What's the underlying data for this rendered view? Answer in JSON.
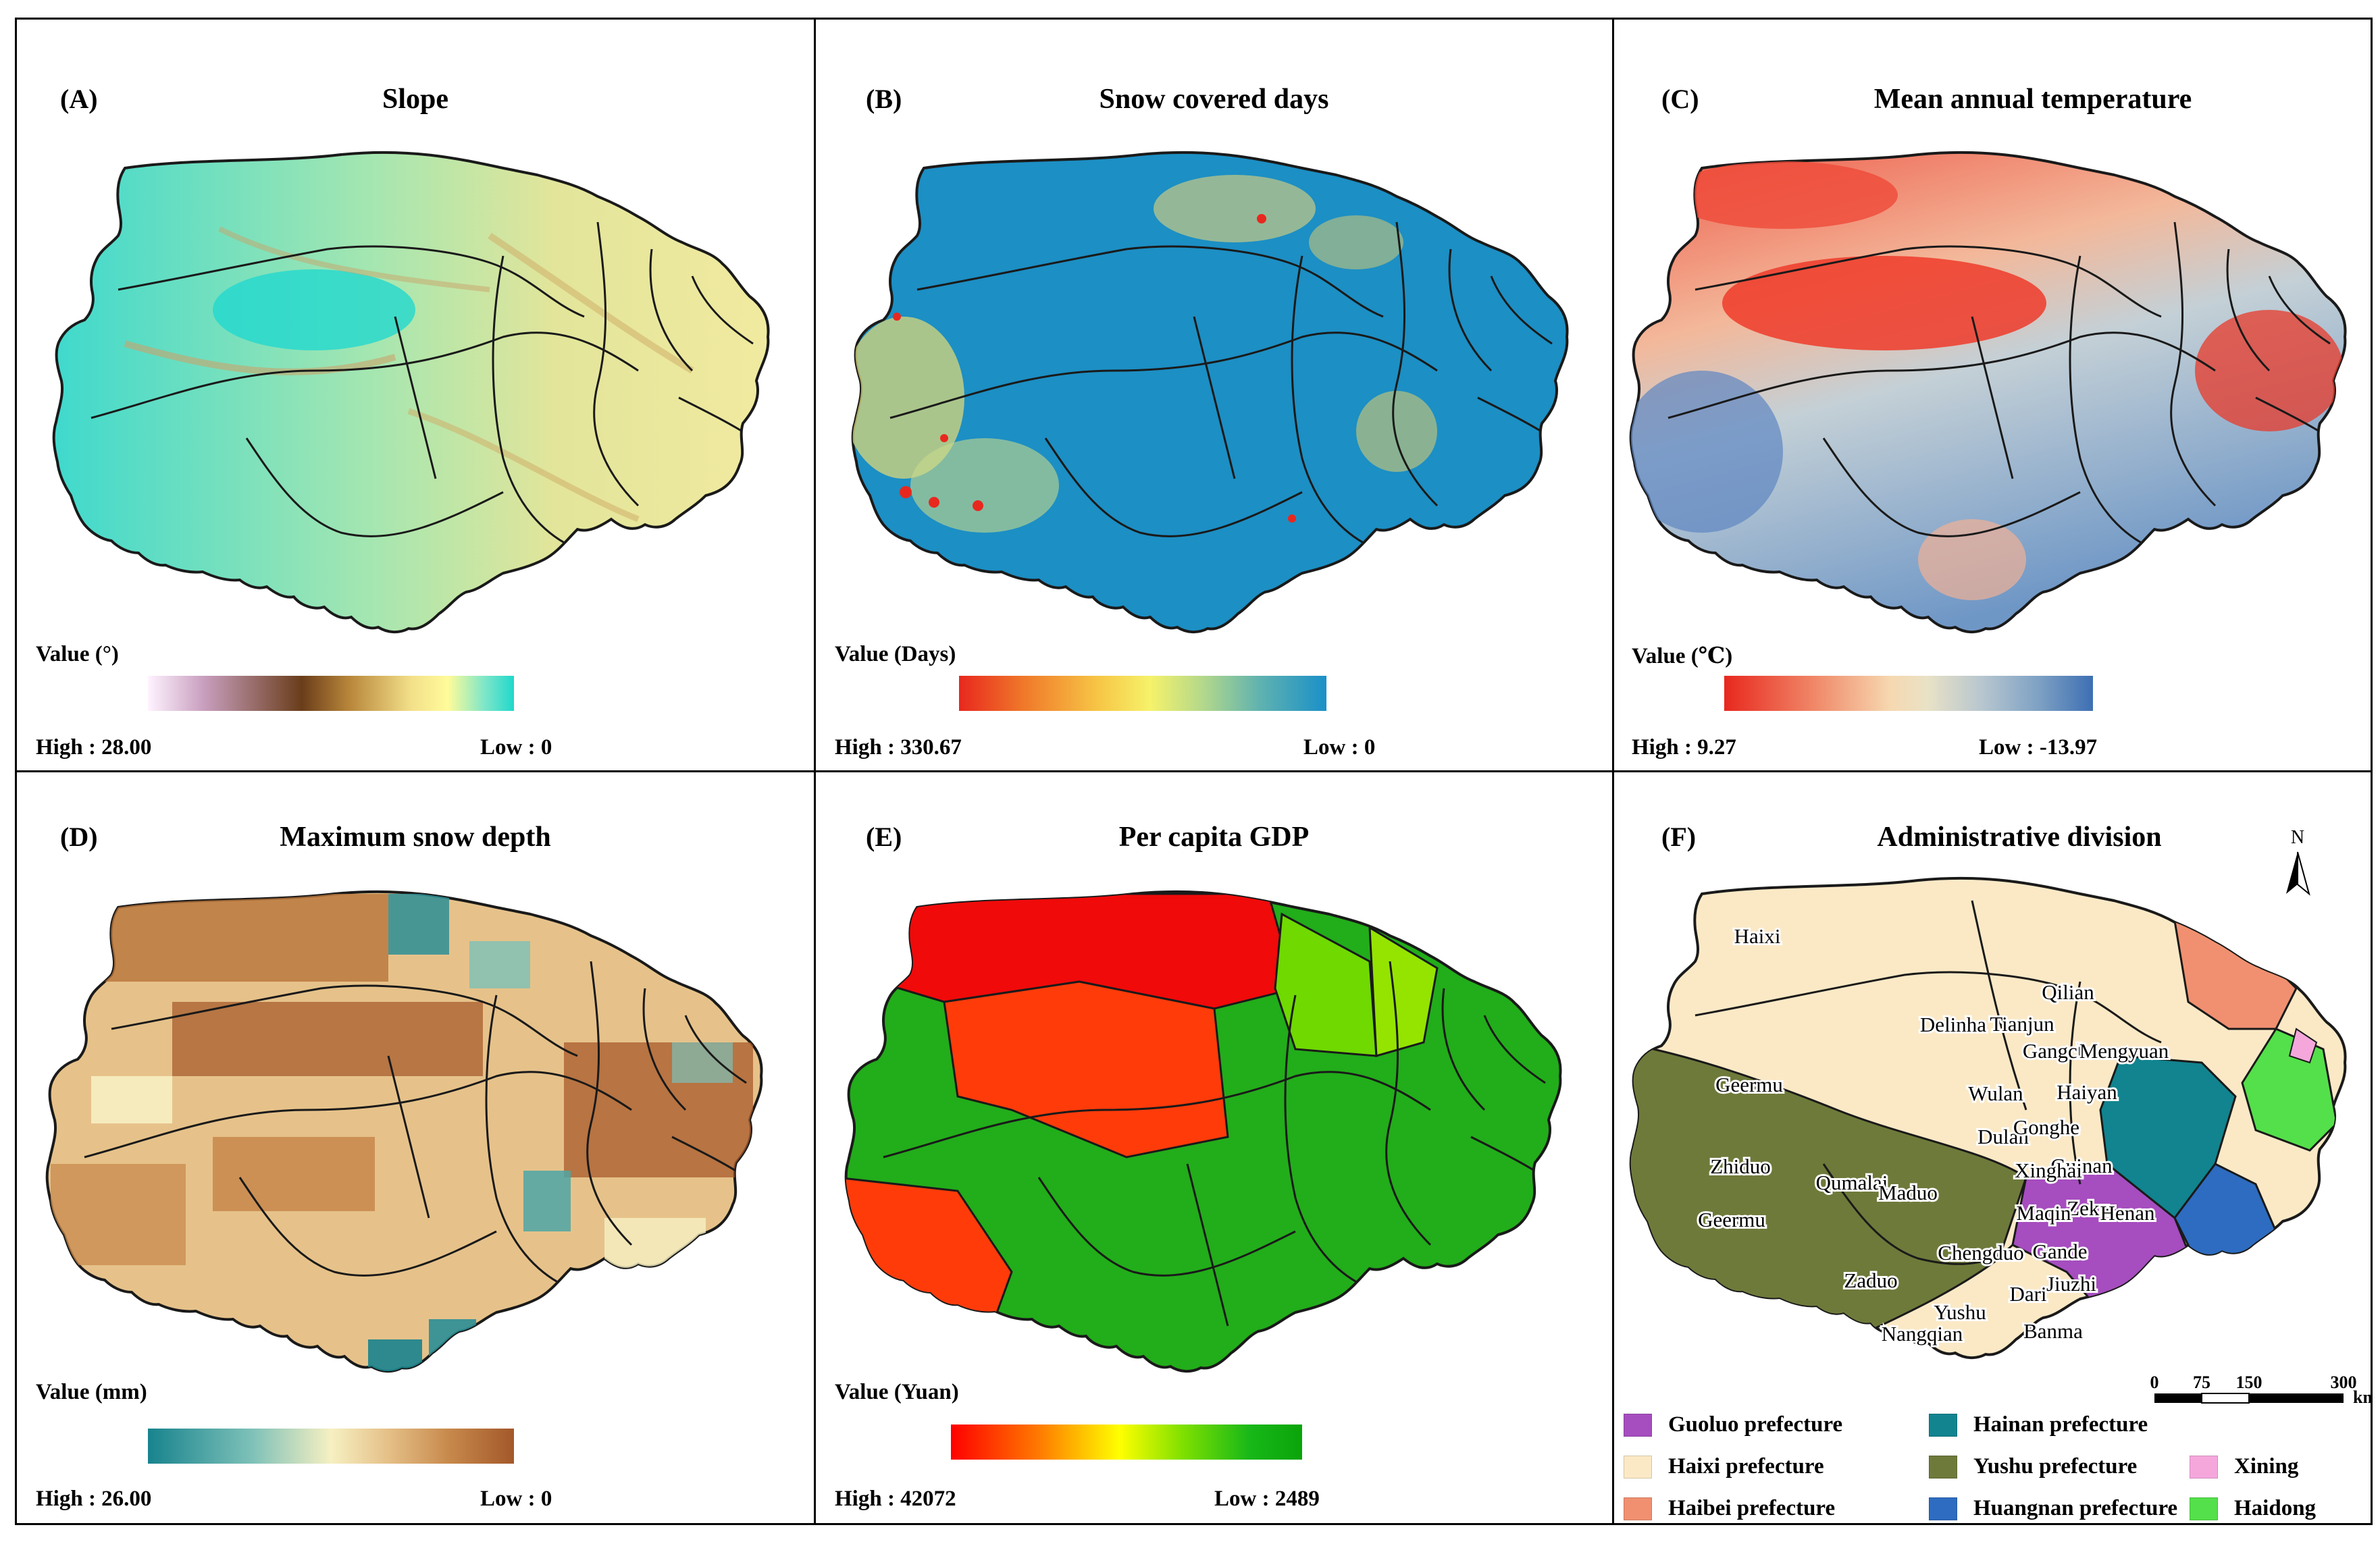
{
  "panels": {
    "A": {
      "letter": "(A)",
      "title": "Slope",
      "value_label": "Value (°)",
      "high": "High : 28.00",
      "low": "Low : 0",
      "ramp": [
        "#fff3ff",
        "#c9a0c0",
        "#6a3d1a",
        "#b8863a",
        "#f3e08a",
        "#fffb9a",
        "#7ee6c8",
        "#1fd8cc"
      ]
    },
    "B": {
      "letter": "(B)",
      "title": "Snow covered days",
      "value_label": "Value (Days)",
      "high": "High : 330.67",
      "low": "Low : 0",
      "ramp": [
        "#e8281e",
        "#f07a2a",
        "#f7c646",
        "#f6f26a",
        "#b5d98a",
        "#5fb2b0",
        "#1a90c8"
      ]
    },
    "C": {
      "letter": "(C)",
      "title": "Mean annual temperature",
      "value_label": "Value (℃)",
      "high": "High : 9.27",
      "low": "Low : -13.97",
      "ramp": [
        "#e8281e",
        "#f08a6a",
        "#f6d8b0",
        "#e9e2c6",
        "#b7c6cf",
        "#7fa2c4",
        "#3d6fb3"
      ]
    },
    "D": {
      "letter": "(D)",
      "title": "Maximum snow depth",
      "value_label": "Value (mm)",
      "high": "High : 26.00",
      "low": "Low : 0",
      "ramp": [
        "#18838d",
        "#7cc0b8",
        "#f6f0c2",
        "#e6c28a",
        "#c88a4c",
        "#a3582a"
      ]
    },
    "E": {
      "letter": "(E)",
      "title": "Per capita GDP",
      "value_label": "Value (Yuan)",
      "high": "High : 42072",
      "low": "Low : 2489",
      "ramp": [
        "#ff0000",
        "#ff7a00",
        "#ffff00",
        "#7fe000",
        "#18b818",
        "#0aa40a"
      ]
    },
    "F": {
      "letter": "(F)",
      "title": "Administrative division"
    }
  },
  "colors": {
    "guoluo": "#a64dbf",
    "haixi": "#fbe9c6",
    "haibei": "#f09070",
    "hainan": "#11848f",
    "yushu": "#6e7a3a",
    "huangnan": "#2d6cc0",
    "xining": "#f5a7dc",
    "haidong": "#54e04a",
    "border": "#1a1a1a",
    "gdp_red": "#f00a0a",
    "gdp_orange": "#ff3b0a",
    "gdp_lime": "#80e200",
    "gdp_green": "#22ad1a"
  },
  "places": [
    "Haixi",
    "Delinha",
    "Tianjun",
    "Qilian",
    "Gangcha",
    "Mengyuan",
    "Geermu",
    "Wulan",
    "Haiyan",
    "Dulan",
    "Gonghe",
    "Guinan",
    "Zhiduo",
    "Xinghai",
    "Zeku",
    "Qumalai",
    "Maduo",
    "Henan",
    "Maqin",
    "Geermu",
    "Gande",
    "Chengduo",
    "Jiuzhi",
    "Zaduo",
    "Dari",
    "Yushu",
    "Banma",
    "Nangqian"
  ],
  "north_label": "N",
  "scale": {
    "ticks": [
      "0",
      "75",
      "150",
      "300"
    ],
    "unit": "km"
  },
  "legend": [
    {
      "label": "Guoluo prefecture",
      "color": "#a64dbf"
    },
    {
      "label": "Hainan prefecture",
      "color": "#11848f"
    },
    {
      "label": "Haixi prefecture",
      "color": "#fbe9c6"
    },
    {
      "label": "Yushu prefecture",
      "color": "#6e7a3a"
    },
    {
      "label": "Xining",
      "color": "#f5a7dc"
    },
    {
      "label": "Haibei prefecture",
      "color": "#f09070"
    },
    {
      "label": "Huangnan prefecture",
      "color": "#2d6cc0"
    },
    {
      "label": "Haidong",
      "color": "#54e04a"
    }
  ]
}
